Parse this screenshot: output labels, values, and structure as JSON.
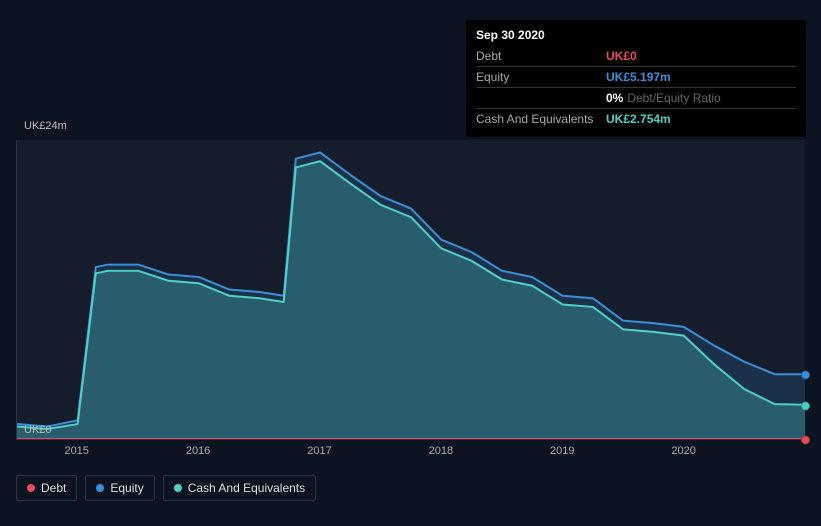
{
  "tooltip": {
    "date": "Sep 30 2020",
    "rows": [
      {
        "label": "Debt",
        "value": "UK£0",
        "color": "#e84a5f"
      },
      {
        "label": "Equity",
        "value": "UK£5.197m",
        "color": "#3a8fd9"
      },
      {
        "label": "",
        "value": "0%",
        "suffix": "Debt/Equity Ratio",
        "color": "#ffffff"
      },
      {
        "label": "Cash And Equivalents",
        "value": "UK£2.754m",
        "color": "#4fd1c5"
      }
    ]
  },
  "chart": {
    "type": "area",
    "background_color": "#151d2c",
    "page_background": "#0d1421",
    "y_axis": {
      "min": 0,
      "max": 24,
      "unit": "UK£",
      "suffix": "m",
      "top_label": "UK£24m",
      "bottom_label": "UK£0"
    },
    "x_axis": {
      "min": 2014.5,
      "max": 2021.0,
      "ticks": [
        2015,
        2016,
        2017,
        2018,
        2019,
        2020
      ]
    },
    "series": [
      {
        "name": "Equity",
        "color": "#3a8fd9",
        "fill": "rgba(58,143,217,0.18)",
        "line_width": 2,
        "data": [
          [
            2014.5,
            1.2
          ],
          [
            2014.75,
            1.0
          ],
          [
            2015.0,
            1.5
          ],
          [
            2015.15,
            13.8
          ],
          [
            2015.25,
            14.0
          ],
          [
            2015.5,
            14.0
          ],
          [
            2015.75,
            13.2
          ],
          [
            2016.0,
            13.0
          ],
          [
            2016.25,
            12.0
          ],
          [
            2016.5,
            11.8
          ],
          [
            2016.7,
            11.5
          ],
          [
            2016.8,
            22.5
          ],
          [
            2017.0,
            23.0
          ],
          [
            2017.25,
            21.2
          ],
          [
            2017.5,
            19.5
          ],
          [
            2017.75,
            18.5
          ],
          [
            2018.0,
            16.0
          ],
          [
            2018.25,
            15.0
          ],
          [
            2018.5,
            13.5
          ],
          [
            2018.75,
            13.0
          ],
          [
            2019.0,
            11.5
          ],
          [
            2019.25,
            11.3
          ],
          [
            2019.5,
            9.5
          ],
          [
            2019.75,
            9.3
          ],
          [
            2020.0,
            9.0
          ],
          [
            2020.25,
            7.5
          ],
          [
            2020.5,
            6.2
          ],
          [
            2020.75,
            5.2
          ],
          [
            2021.0,
            5.197
          ]
        ],
        "end_value": 5.197
      },
      {
        "name": "Cash And Equivalents",
        "color": "#4fd1c5",
        "fill": "rgba(79,209,197,0.28)",
        "line_width": 2,
        "data": [
          [
            2014.5,
            1.0
          ],
          [
            2014.75,
            0.8
          ],
          [
            2015.0,
            1.2
          ],
          [
            2015.15,
            13.3
          ],
          [
            2015.25,
            13.5
          ],
          [
            2015.5,
            13.5
          ],
          [
            2015.75,
            12.7
          ],
          [
            2016.0,
            12.5
          ],
          [
            2016.25,
            11.5
          ],
          [
            2016.5,
            11.3
          ],
          [
            2016.7,
            11.0
          ],
          [
            2016.8,
            21.8
          ],
          [
            2017.0,
            22.3
          ],
          [
            2017.25,
            20.5
          ],
          [
            2017.5,
            18.8
          ],
          [
            2017.75,
            17.8
          ],
          [
            2018.0,
            15.3
          ],
          [
            2018.25,
            14.3
          ],
          [
            2018.5,
            12.8
          ],
          [
            2018.75,
            12.3
          ],
          [
            2019.0,
            10.8
          ],
          [
            2019.25,
            10.6
          ],
          [
            2019.5,
            8.8
          ],
          [
            2019.75,
            8.6
          ],
          [
            2020.0,
            8.3
          ],
          [
            2020.25,
            6.0
          ],
          [
            2020.5,
            4.0
          ],
          [
            2020.75,
            2.8
          ],
          [
            2021.0,
            2.754
          ]
        ],
        "end_value": 2.754
      },
      {
        "name": "Debt",
        "color": "#e84a5f",
        "fill": "none",
        "line_width": 2,
        "data": [
          [
            2014.5,
            0
          ],
          [
            2021.0,
            0
          ]
        ],
        "end_value": 0
      }
    ],
    "legend": [
      {
        "label": "Debt",
        "color": "#e84a5f"
      },
      {
        "label": "Equity",
        "color": "#3a8fd9"
      },
      {
        "label": "Cash And Equivalents",
        "color": "#4fd1c5"
      }
    ]
  }
}
